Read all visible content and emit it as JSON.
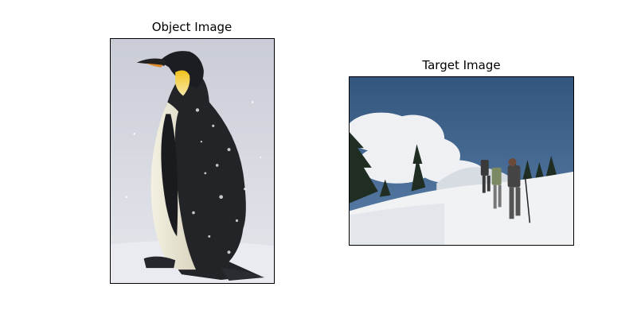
{
  "panels": {
    "object": {
      "title": "Object Image"
    },
    "target": {
      "title": "Target Image"
    }
  }
}
